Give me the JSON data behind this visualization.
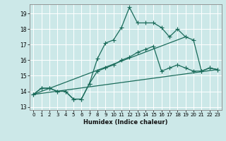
{
  "xlabel": "Humidex (Indice chaleur)",
  "bg_color": "#cce8e8",
  "grid_color": "#ffffff",
  "line_color": "#1a6b5a",
  "xlim": [
    -0.5,
    23.5
  ],
  "ylim": [
    12.8,
    19.6
  ],
  "yticks": [
    13,
    14,
    15,
    16,
    17,
    18,
    19
  ],
  "xticks": [
    0,
    1,
    2,
    3,
    4,
    5,
    6,
    7,
    8,
    9,
    10,
    11,
    12,
    13,
    14,
    15,
    16,
    17,
    18,
    19,
    20,
    21,
    22,
    23
  ],
  "series1_x": [
    0,
    1,
    2,
    3,
    4,
    5,
    6,
    7,
    8,
    9,
    10,
    11,
    12,
    13,
    14,
    15,
    16,
    17,
    18,
    19,
    20,
    21,
    22,
    23
  ],
  "series1_y": [
    13.8,
    14.2,
    14.2,
    14.0,
    14.0,
    13.5,
    13.5,
    14.5,
    16.1,
    17.1,
    17.3,
    18.1,
    19.4,
    18.4,
    18.4,
    18.4,
    18.1,
    17.5,
    18.0,
    17.5,
    17.3,
    15.3,
    15.5,
    15.4
  ],
  "series2_x": [
    0,
    1,
    2,
    3,
    4,
    5,
    6,
    7,
    8,
    9,
    10,
    11,
    12,
    13,
    14,
    15,
    16,
    17,
    18,
    19,
    20,
    21,
    22,
    23
  ],
  "series2_y": [
    13.8,
    14.2,
    14.2,
    14.0,
    14.0,
    13.5,
    13.5,
    14.5,
    15.3,
    15.5,
    15.7,
    16.0,
    16.2,
    16.5,
    16.7,
    16.9,
    15.3,
    15.5,
    15.7,
    15.5,
    15.3,
    15.3,
    15.5,
    15.4
  ],
  "series3_x": [
    0,
    23
  ],
  "series3_y": [
    13.8,
    15.4
  ],
  "series4_x": [
    0,
    19
  ],
  "series4_y": [
    13.8,
    17.5
  ]
}
